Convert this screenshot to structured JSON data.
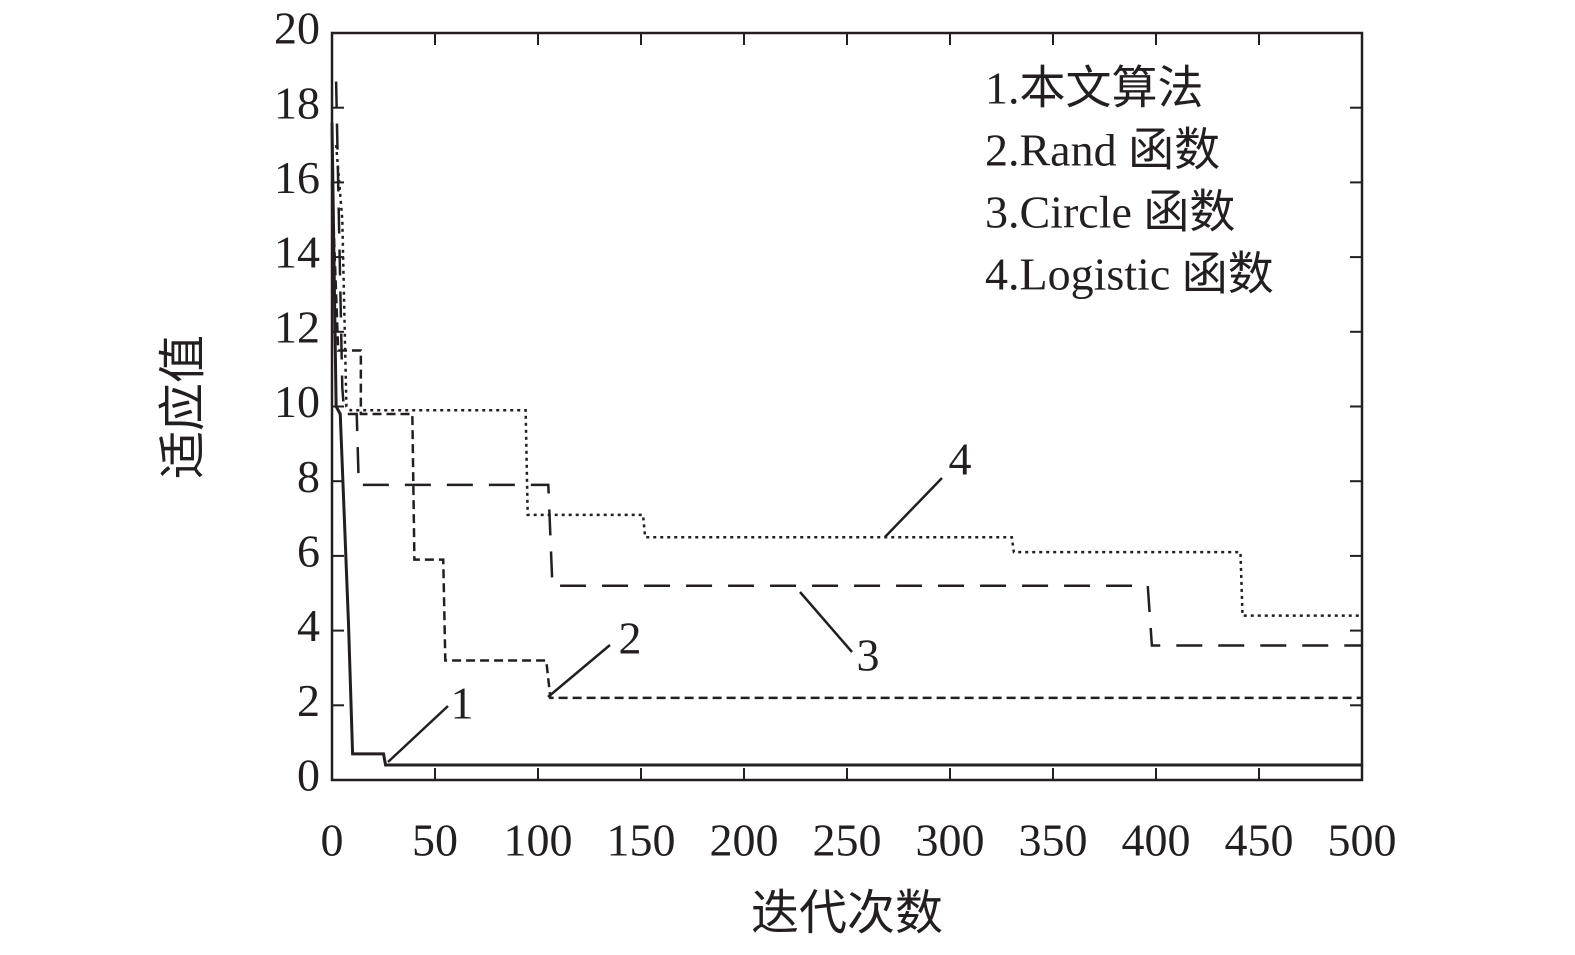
{
  "chart_data": {
    "type": "line",
    "xlabel": "迭代次数",
    "ylabel": "适应值",
    "xlim": [
      0,
      500
    ],
    "ylim": [
      0,
      20
    ],
    "xticks": [
      0,
      50,
      100,
      150,
      200,
      250,
      300,
      350,
      400,
      450,
      500
    ],
    "yticks": [
      0,
      2,
      4,
      6,
      8,
      10,
      12,
      14,
      16,
      18,
      20
    ],
    "legend": "upper right",
    "series": [
      {
        "name": "1.本文算法",
        "color": "#231f20",
        "line_style": "solid",
        "x": [
          0,
          2,
          4,
          8,
          10,
          25,
          26,
          500
        ],
        "values": [
          17.6,
          10,
          9.8,
          4.2,
          0.7,
          0.7,
          0.4,
          0.4
        ]
      },
      {
        "name": "2.Rand 函数",
        "color": "#231f20",
        "line_style": "short-dash",
        "x": [
          0,
          3,
          14,
          14,
          39,
          40,
          54,
          55,
          104,
          106,
          500
        ],
        "values": [
          16,
          11.5,
          11.5,
          9.8,
          9.8,
          5.9,
          5.9,
          3.2,
          3.2,
          2.2,
          2.2
        ]
      },
      {
        "name": "3.Circle 函数",
        "color": "#231f20",
        "line_style": "long-dash",
        "x": [
          2,
          5,
          6,
          12,
          13,
          105,
          107,
          396,
          398,
          500
        ],
        "values": [
          18.7,
          10.5,
          9.8,
          9.8,
          7.9,
          7.9,
          5.2,
          5.2,
          3.6,
          3.6
        ]
      },
      {
        "name": "4.Logistic 函数",
        "color": "#231f20",
        "line_style": "dotted",
        "x": [
          2,
          5,
          7,
          9,
          94,
          95,
          151,
          152,
          330,
          331,
          441,
          442,
          500
        ],
        "values": [
          17,
          15,
          10,
          9.9,
          9.9,
          7.1,
          7.1,
          6.5,
          6.5,
          6.1,
          6.1,
          4.4,
          4.4
        ]
      }
    ],
    "annotations": [
      "1",
      "2",
      "3",
      "4"
    ]
  }
}
